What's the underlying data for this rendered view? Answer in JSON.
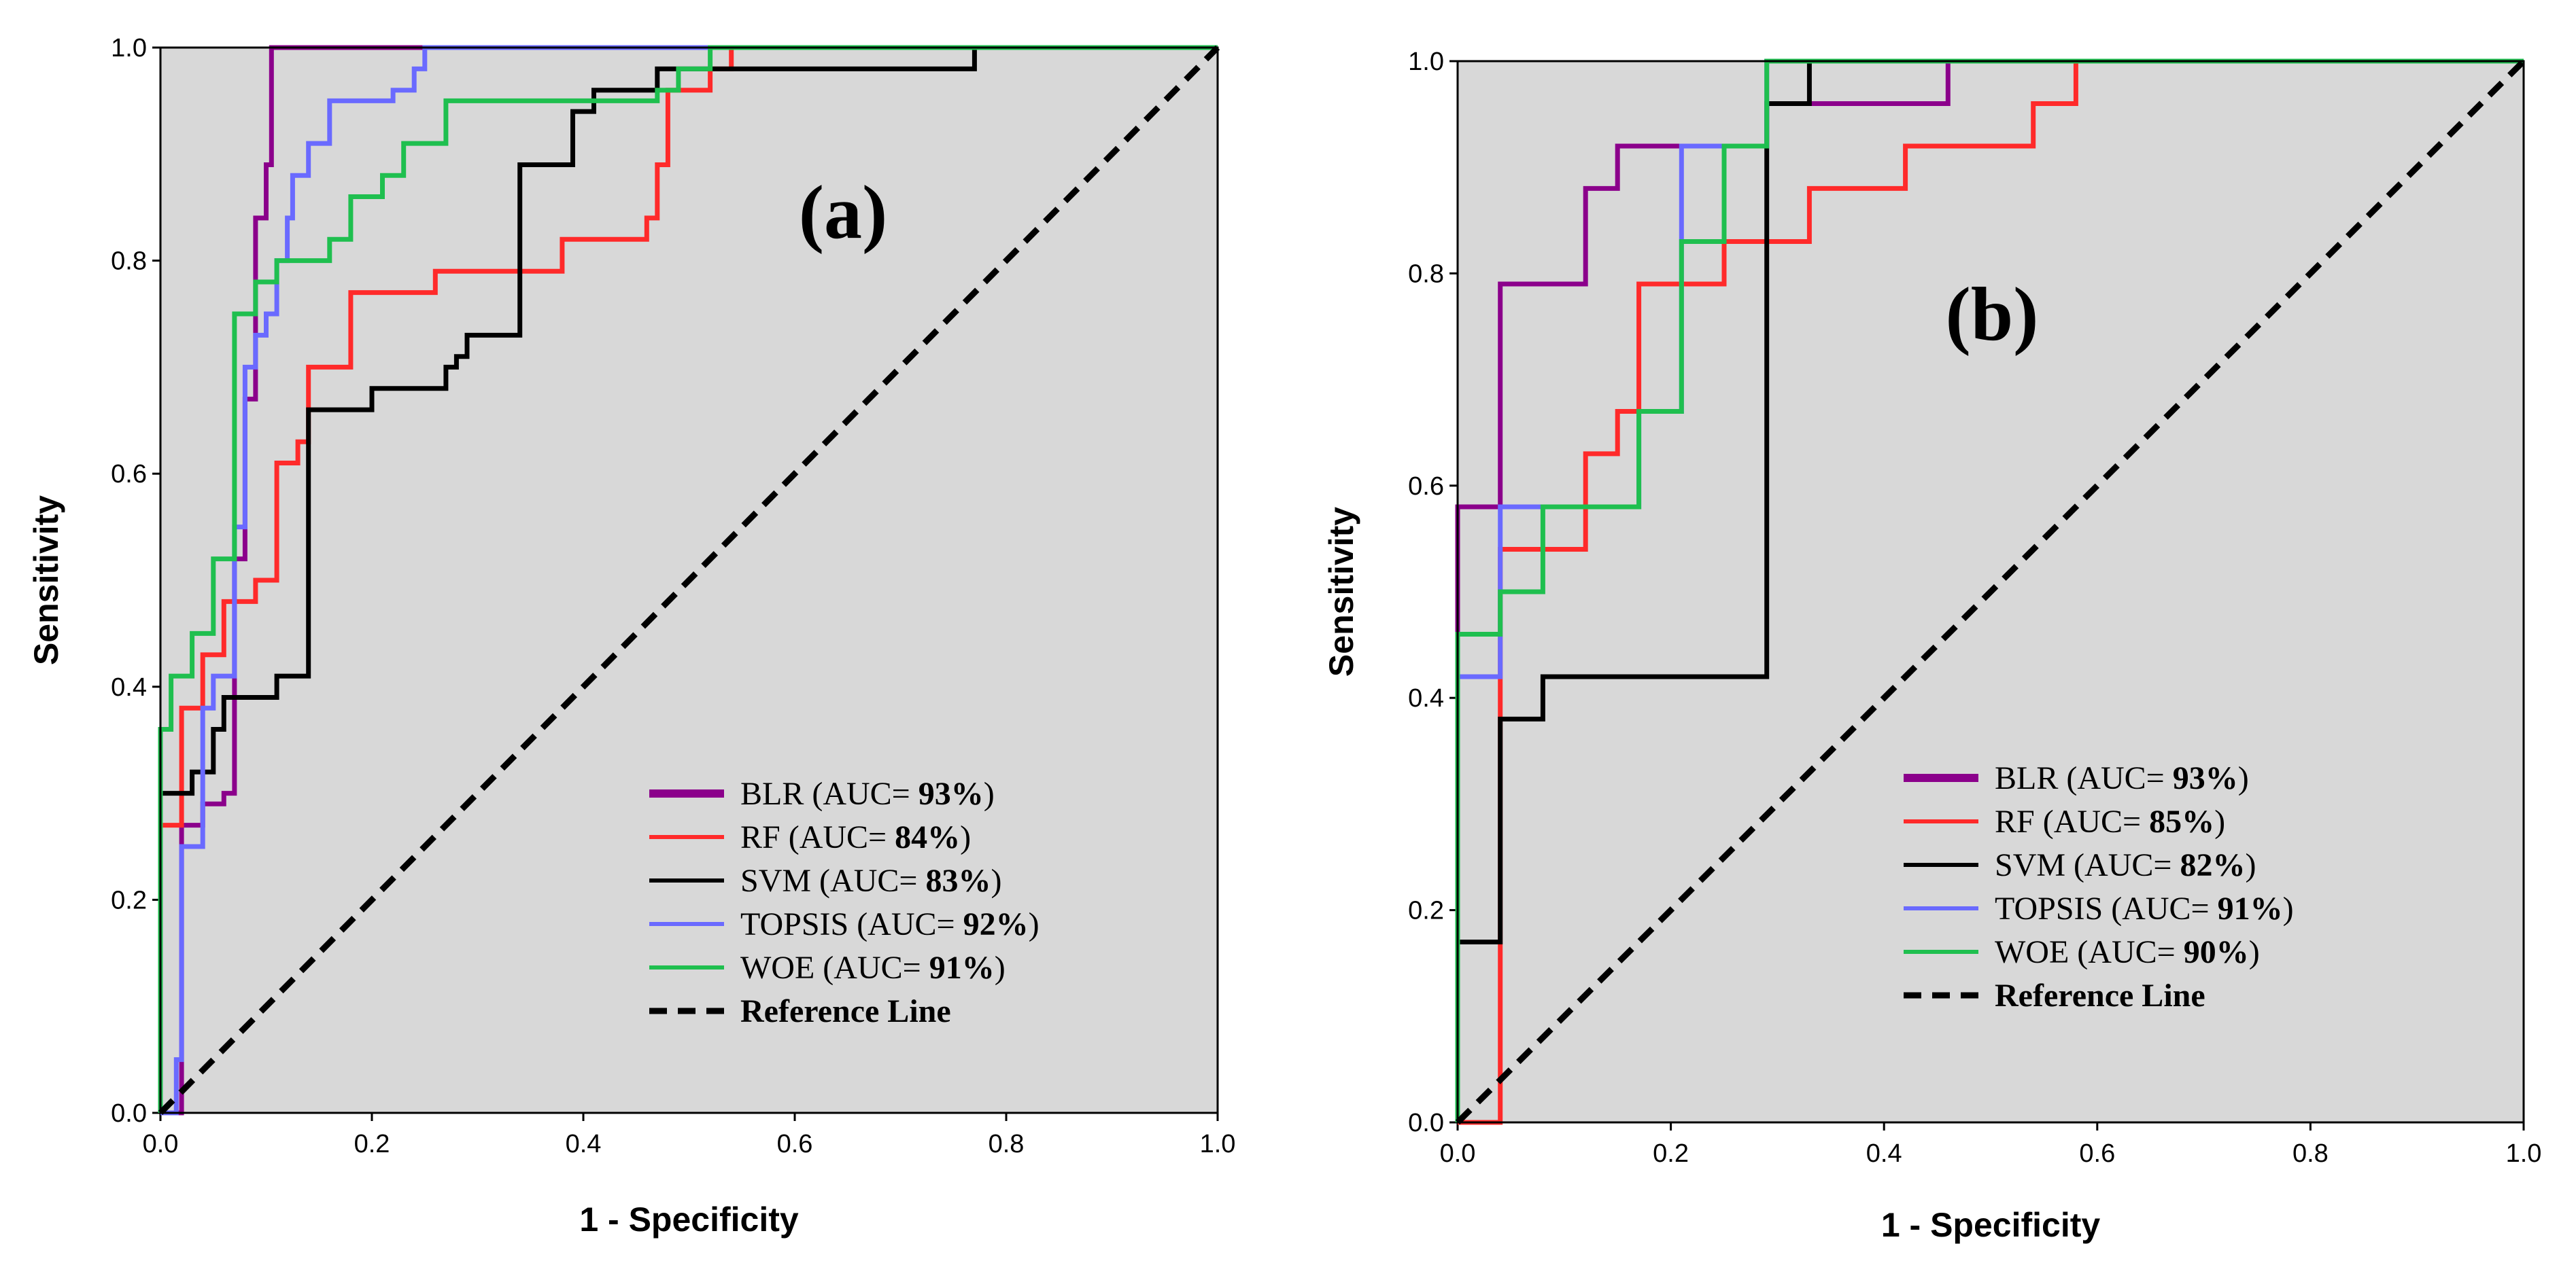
{
  "chart_data": [
    {
      "type": "line",
      "panel_label": "(a)",
      "xlabel": "1 - Specificity",
      "ylabel": "Sensitivity",
      "xlim": [
        0,
        1
      ],
      "ylim": [
        0,
        1
      ],
      "x_tick_labels": [
        "0.0",
        "0.2",
        "0.4",
        "0.6",
        "0.8",
        "1.0"
      ],
      "y_tick_labels": [
        "0.0",
        "0.2",
        "0.4",
        "0.6",
        "0.8",
        "1.0"
      ],
      "background_color": "#d8d8d8",
      "legend_position": "bottom-right",
      "series": [
        {
          "name": "BLR",
          "label": "BLR (AUC= ",
          "auc": "93%",
          "label_suffix": ")",
          "color": "#8b008b",
          "line": "solid",
          "points": [
            [
              0,
              0
            ],
            [
              0.02,
              0
            ],
            [
              0.02,
              0.27
            ],
            [
              0.04,
              0.27
            ],
            [
              0.04,
              0.29
            ],
            [
              0.06,
              0.29
            ],
            [
              0.06,
              0.3
            ],
            [
              0.07,
              0.3
            ],
            [
              0.07,
              0.52
            ],
            [
              0.08,
              0.52
            ],
            [
              0.08,
              0.67
            ],
            [
              0.09,
              0.67
            ],
            [
              0.09,
              0.84
            ],
            [
              0.1,
              0.84
            ],
            [
              0.1,
              0.89
            ],
            [
              0.105,
              0.89
            ],
            [
              0.105,
              1.0
            ],
            [
              1,
              1
            ]
          ]
        },
        {
          "name": "RF",
          "label": "RF (AUC= ",
          "auc": "84%",
          "label_suffix": ")",
          "color": "#ff2a2a",
          "line": "solid",
          "points": [
            [
              0,
              0
            ],
            [
              0.0,
              0.27
            ],
            [
              0.02,
              0.27
            ],
            [
              0.02,
              0.38
            ],
            [
              0.04,
              0.38
            ],
            [
              0.04,
              0.43
            ],
            [
              0.06,
              0.43
            ],
            [
              0.06,
              0.48
            ],
            [
              0.09,
              0.48
            ],
            [
              0.09,
              0.5
            ],
            [
              0.11,
              0.5
            ],
            [
              0.11,
              0.61
            ],
            [
              0.13,
              0.61
            ],
            [
              0.13,
              0.63
            ],
            [
              0.14,
              0.63
            ],
            [
              0.14,
              0.7
            ],
            [
              0.18,
              0.7
            ],
            [
              0.18,
              0.77
            ],
            [
              0.26,
              0.77
            ],
            [
              0.26,
              0.79
            ],
            [
              0.38,
              0.79
            ],
            [
              0.38,
              0.82
            ],
            [
              0.46,
              0.82
            ],
            [
              0.46,
              0.84
            ],
            [
              0.47,
              0.84
            ],
            [
              0.47,
              0.89
            ],
            [
              0.48,
              0.89
            ],
            [
              0.48,
              0.96
            ],
            [
              0.52,
              0.96
            ],
            [
              0.52,
              0.98
            ],
            [
              0.54,
              0.98
            ],
            [
              0.54,
              1.0
            ],
            [
              1,
              1
            ]
          ]
        },
        {
          "name": "SVM",
          "label": "SVM (AUC= ",
          "auc": "83%",
          "label_suffix": ")",
          "color": "#000000",
          "line": "solid",
          "points": [
            [
              0,
              0
            ],
            [
              0,
              0.3
            ],
            [
              0.03,
              0.3
            ],
            [
              0.03,
              0.32
            ],
            [
              0.05,
              0.32
            ],
            [
              0.05,
              0.36
            ],
            [
              0.06,
              0.36
            ],
            [
              0.06,
              0.39
            ],
            [
              0.11,
              0.39
            ],
            [
              0.11,
              0.41
            ],
            [
              0.14,
              0.41
            ],
            [
              0.14,
              0.66
            ],
            [
              0.2,
              0.66
            ],
            [
              0.2,
              0.68
            ],
            [
              0.27,
              0.68
            ],
            [
              0.27,
              0.7
            ],
            [
              0.28,
              0.7
            ],
            [
              0.28,
              0.71
            ],
            [
              0.29,
              0.71
            ],
            [
              0.29,
              0.73
            ],
            [
              0.3,
              0.73
            ],
            [
              0.3,
              0.73
            ],
            [
              0.32,
              0.73
            ],
            [
              0.32,
              0.73
            ],
            [
              0.34,
              0.73
            ],
            [
              0.34,
              0.89
            ],
            [
              0.39,
              0.89
            ],
            [
              0.39,
              0.94
            ],
            [
              0.41,
              0.94
            ],
            [
              0.41,
              0.96
            ],
            [
              0.47,
              0.96
            ],
            [
              0.47,
              0.98
            ],
            [
              0.77,
              0.98
            ],
            [
              0.77,
              1.0
            ],
            [
              1,
              1
            ]
          ]
        },
        {
          "name": "TOPSIS",
          "label": "TOPSIS (AUC= ",
          "auc": "92%",
          "label_suffix": ")",
          "color": "#6a6aff",
          "line": "solid",
          "points": [
            [
              0,
              0
            ],
            [
              0.015,
              0
            ],
            [
              0.015,
              0.05
            ],
            [
              0.02,
              0.05
            ],
            [
              0.02,
              0.25
            ],
            [
              0.04,
              0.25
            ],
            [
              0.04,
              0.38
            ],
            [
              0.05,
              0.38
            ],
            [
              0.05,
              0.41
            ],
            [
              0.07,
              0.41
            ],
            [
              0.07,
              0.55
            ],
            [
              0.08,
              0.55
            ],
            [
              0.08,
              0.7
            ],
            [
              0.09,
              0.7
            ],
            [
              0.09,
              0.73
            ],
            [
              0.1,
              0.73
            ],
            [
              0.1,
              0.75
            ],
            [
              0.11,
              0.75
            ],
            [
              0.11,
              0.8
            ],
            [
              0.12,
              0.8
            ],
            [
              0.12,
              0.84
            ],
            [
              0.125,
              0.84
            ],
            [
              0.125,
              0.88
            ],
            [
              0.14,
              0.88
            ],
            [
              0.14,
              0.91
            ],
            [
              0.16,
              0.91
            ],
            [
              0.16,
              0.95
            ],
            [
              0.22,
              0.95
            ],
            [
              0.22,
              0.96
            ],
            [
              0.24,
              0.96
            ],
            [
              0.24,
              0.98
            ],
            [
              0.25,
              0.98
            ],
            [
              0.25,
              1.0
            ],
            [
              1,
              1
            ]
          ]
        },
        {
          "name": "WOE",
          "label": "WOE (AUC= ",
          "auc": "91%",
          "label_suffix": ")",
          "color": "#1fbf4f",
          "line": "solid",
          "points": [
            [
              0,
              0
            ],
            [
              0,
              0.36
            ],
            [
              0.01,
              0.36
            ],
            [
              0.01,
              0.41
            ],
            [
              0.03,
              0.41
            ],
            [
              0.03,
              0.45
            ],
            [
              0.05,
              0.45
            ],
            [
              0.05,
              0.52
            ],
            [
              0.07,
              0.52
            ],
            [
              0.07,
              0.75
            ],
            [
              0.09,
              0.75
            ],
            [
              0.09,
              0.78
            ],
            [
              0.11,
              0.78
            ],
            [
              0.11,
              0.8
            ],
            [
              0.16,
              0.8
            ],
            [
              0.16,
              0.82
            ],
            [
              0.18,
              0.82
            ],
            [
              0.18,
              0.86
            ],
            [
              0.21,
              0.86
            ],
            [
              0.21,
              0.88
            ],
            [
              0.23,
              0.88
            ],
            [
              0.23,
              0.91
            ],
            [
              0.27,
              0.91
            ],
            [
              0.27,
              0.95
            ],
            [
              0.47,
              0.95
            ],
            [
              0.47,
              0.96
            ],
            [
              0.49,
              0.96
            ],
            [
              0.49,
              0.98
            ],
            [
              0.52,
              0.98
            ],
            [
              0.52,
              1.0
            ],
            [
              1,
              1
            ]
          ]
        },
        {
          "name": "Reference Line",
          "label": "Reference Line",
          "auc": "",
          "label_suffix": "",
          "color": "#000000",
          "line": "dashed",
          "points": [
            [
              0,
              0
            ],
            [
              1,
              1
            ]
          ]
        }
      ]
    },
    {
      "type": "line",
      "panel_label": "(b)",
      "xlabel": "1 - Specificity",
      "ylabel": "Sensitivity",
      "xlim": [
        0,
        1
      ],
      "ylim": [
        0,
        1
      ],
      "x_tick_labels": [
        "0.0",
        "0.2",
        "0.4",
        "0.6",
        "0.8",
        "1.0"
      ],
      "y_tick_labels": [
        "0.0",
        "0.2",
        "0.4",
        "0.6",
        "0.8",
        "1.0"
      ],
      "background_color": "#d8d8d8",
      "legend_position": "bottom-right",
      "series": [
        {
          "name": "BLR",
          "label": "BLR (AUC= ",
          "auc": "93%",
          "label_suffix": ")",
          "color": "#8b008b",
          "line": "solid",
          "points": [
            [
              0,
              0
            ],
            [
              0,
              0.58
            ],
            [
              0.04,
              0.58
            ],
            [
              0.04,
              0.79
            ],
            [
              0.08,
              0.79
            ],
            [
              0.08,
              0.79
            ],
            [
              0.1,
              0.79
            ],
            [
              0.1,
              0.79
            ],
            [
              0.12,
              0.79
            ],
            [
              0.12,
              0.88
            ],
            [
              0.15,
              0.88
            ],
            [
              0.15,
              0.92
            ],
            [
              0.29,
              0.92
            ],
            [
              0.29,
              0.96
            ],
            [
              0.46,
              0.96
            ],
            [
              0.46,
              1.0
            ],
            [
              1,
              1
            ]
          ]
        },
        {
          "name": "RF",
          "label": "RF (AUC= ",
          "auc": "85%",
          "label_suffix": ")",
          "color": "#ff2a2a",
          "line": "solid",
          "points": [
            [
              0,
              0
            ],
            [
              0.04,
              0
            ],
            [
              0.04,
              0.54
            ],
            [
              0.12,
              0.54
            ],
            [
              0.12,
              0.63
            ],
            [
              0.15,
              0.63
            ],
            [
              0.15,
              0.67
            ],
            [
              0.17,
              0.67
            ],
            [
              0.17,
              0.79
            ],
            [
              0.21,
              0.79
            ],
            [
              0.21,
              0.79
            ],
            [
              0.25,
              0.79
            ],
            [
              0.25,
              0.83
            ],
            [
              0.33,
              0.83
            ],
            [
              0.33,
              0.88
            ],
            [
              0.42,
              0.88
            ],
            [
              0.42,
              0.92
            ],
            [
              0.54,
              0.92
            ],
            [
              0.54,
              0.96
            ],
            [
              0.58,
              0.96
            ],
            [
              0.58,
              1.0
            ],
            [
              1,
              1
            ]
          ]
        },
        {
          "name": "SVM",
          "label": "SVM (AUC= ",
          "auc": "82%",
          "label_suffix": ")",
          "color": "#000000",
          "line": "solid",
          "points": [
            [
              0,
              0
            ],
            [
              0,
              0.17
            ],
            [
              0.04,
              0.17
            ],
            [
              0.04,
              0.38
            ],
            [
              0.08,
              0.38
            ],
            [
              0.08,
              0.42
            ],
            [
              0.29,
              0.42
            ],
            [
              0.29,
              0.96
            ],
            [
              0.33,
              0.96
            ],
            [
              0.33,
              1.0
            ],
            [
              1,
              1
            ]
          ]
        },
        {
          "name": "TOPSIS",
          "label": "TOPSIS (AUC= ",
          "auc": "91%",
          "label_suffix": ")",
          "color": "#6a6aff",
          "line": "solid",
          "points": [
            [
              0,
              0
            ],
            [
              0,
              0.42
            ],
            [
              0.04,
              0.42
            ],
            [
              0.04,
              0.58
            ],
            [
              0.08,
              0.58
            ],
            [
              0.08,
              0.58
            ],
            [
              0.17,
              0.58
            ],
            [
              0.17,
              0.67
            ],
            [
              0.21,
              0.67
            ],
            [
              0.21,
              0.92
            ],
            [
              0.29,
              0.92
            ],
            [
              0.29,
              1.0
            ],
            [
              1,
              1
            ]
          ]
        },
        {
          "name": "WOE",
          "label": "WOE (AUC= ",
          "auc": "90%",
          "label_suffix": ")",
          "color": "#1fbf4f",
          "line": "solid",
          "points": [
            [
              0,
              0
            ],
            [
              0,
              0.46
            ],
            [
              0.04,
              0.46
            ],
            [
              0.04,
              0.5
            ],
            [
              0.08,
              0.5
            ],
            [
              0.08,
              0.58
            ],
            [
              0.17,
              0.58
            ],
            [
              0.17,
              0.67
            ],
            [
              0.21,
              0.67
            ],
            [
              0.21,
              0.83
            ],
            [
              0.25,
              0.83
            ],
            [
              0.25,
              0.92
            ],
            [
              0.29,
              0.92
            ],
            [
              0.29,
              1.0
            ],
            [
              1,
              1
            ]
          ]
        },
        {
          "name": "Reference Line",
          "label": "Reference Line",
          "auc": "",
          "label_suffix": "",
          "color": "#000000",
          "line": "dashed",
          "points": [
            [
              0,
              0
            ],
            [
              1,
              1
            ]
          ]
        }
      ]
    }
  ]
}
